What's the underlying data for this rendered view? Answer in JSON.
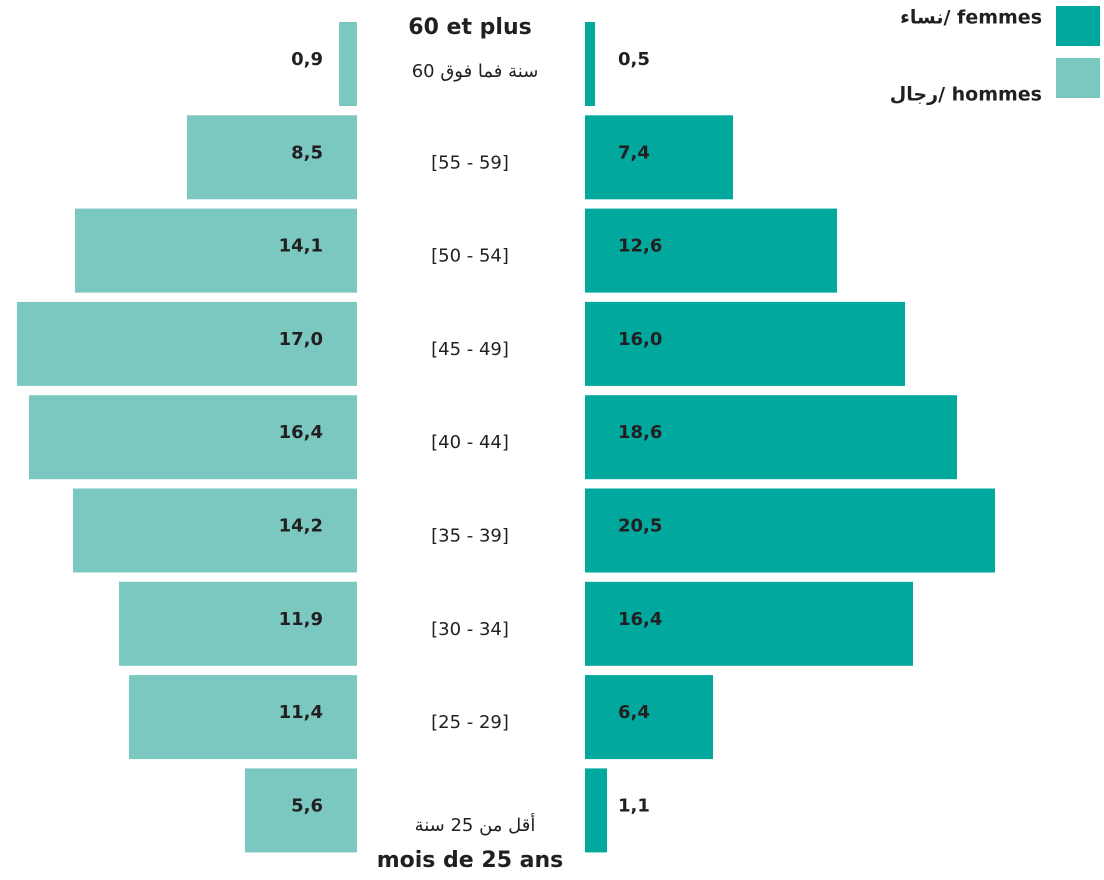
{
  "chart_data": {
    "type": "pyramid",
    "categories": [
      "60 et plus",
      "[55 - 59]",
      "[50 - 54]",
      "[45 - 49]",
      "[40 - 44]",
      "[35 - 39]",
      "[30 - 34]",
      "[25 - 29]",
      "mois de 25 ans"
    ],
    "categories_ar": [
      "60 سنة فما فوق",
      null,
      null,
      null,
      null,
      null,
      null,
      null,
      "أقل من 25 سنة"
    ],
    "series": [
      {
        "name": "نساء/ femmes",
        "color": "#00a89e",
        "side": "right",
        "values": [
          0.5,
          7.4,
          12.6,
          16.0,
          18.6,
          20.5,
          16.4,
          6.4,
          1.1
        ],
        "value_labels": [
          "0,5",
          "7,4",
          "12,6",
          "16,0",
          "18,6",
          "20,5",
          "16,4",
          "6,4",
          "1,1"
        ]
      },
      {
        "name": "رجال/ hommes",
        "color": "#7bc8c1",
        "side": "left",
        "values": [
          0.9,
          8.5,
          14.1,
          17.0,
          16.4,
          14.2,
          11.9,
          11.4,
          5.6
        ],
        "value_labels": [
          "0,9",
          "8,5",
          "14,1",
          "17,0",
          "16,4",
          "14,2",
          "11,9",
          "11,4",
          "5,6"
        ]
      }
    ]
  }
}
